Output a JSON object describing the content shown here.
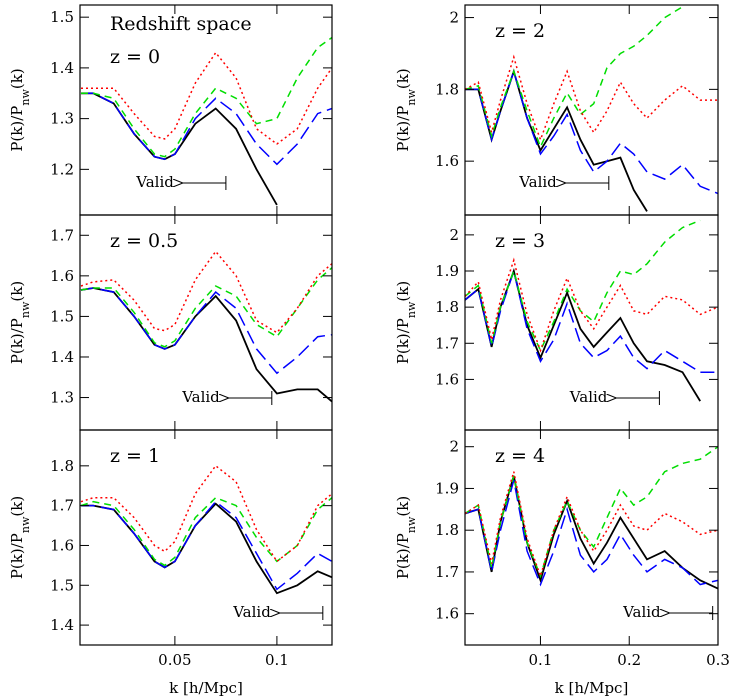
{
  "chart_data": [
    {
      "type": "line",
      "note": "Redshift space",
      "title": "z = 0",
      "ylabel": [
        "P(k)/P",
        "nw",
        "(k)"
      ],
      "annotation": "Valid",
      "valid_k": 0.075,
      "xlim": [
        0.0035,
        0.127
      ],
      "xticks": [
        0.05,
        0.1
      ],
      "ylim": [
        1.11,
        1.524
      ],
      "yticks": [
        1.2,
        1.3,
        1.4,
        1.5
      ],
      "x": [
        0.004,
        0.01,
        0.02,
        0.03,
        0.04,
        0.045,
        0.05,
        0.06,
        0.07,
        0.08,
        0.09,
        0.1,
        0.11,
        0.12,
        0.127
      ],
      "series": [
        {
          "color": "#000000",
          "dash": "solid",
          "values": [
            1.35,
            1.35,
            1.33,
            1.27,
            1.225,
            1.22,
            1.23,
            1.29,
            1.32,
            1.28,
            1.2,
            1.13,
            null,
            null,
            null
          ]
        },
        {
          "color": "#0000ff",
          "dash": "long",
          "values": [
            1.35,
            1.35,
            1.33,
            1.27,
            1.225,
            1.22,
            1.23,
            1.3,
            1.34,
            1.31,
            1.25,
            1.21,
            1.25,
            1.31,
            1.32
          ]
        },
        {
          "color": "#00dd00",
          "dash": "short",
          "values": [
            1.35,
            1.35,
            1.34,
            1.28,
            1.23,
            1.225,
            1.24,
            1.31,
            1.36,
            1.34,
            1.29,
            1.3,
            1.38,
            1.44,
            1.46
          ]
        },
        {
          "color": "#ff0000",
          "dash": "dotted",
          "values": [
            1.36,
            1.36,
            1.36,
            1.31,
            1.265,
            1.26,
            1.28,
            1.37,
            1.43,
            1.38,
            1.28,
            1.25,
            1.28,
            1.36,
            1.4
          ]
        }
      ]
    },
    {
      "type": "line",
      "title": "z = 0.5",
      "ylabel": [
        "P(k)/P",
        "nw",
        "(k)"
      ],
      "annotation": "Valid",
      "valid_k": 0.0975,
      "xlim": [
        0.0035,
        0.127
      ],
      "xticks": [
        0.05,
        0.1
      ],
      "ylim": [
        1.22,
        1.75
      ],
      "yticks": [
        1.3,
        1.4,
        1.5,
        1.6,
        1.7
      ],
      "x": [
        0.004,
        0.01,
        0.02,
        0.03,
        0.04,
        0.045,
        0.05,
        0.06,
        0.07,
        0.08,
        0.09,
        0.1,
        0.11,
        0.12,
        0.127
      ],
      "series": [
        {
          "color": "#000000",
          "dash": "solid",
          "values": [
            1.565,
            1.57,
            1.56,
            1.5,
            1.43,
            1.42,
            1.43,
            1.5,
            1.55,
            1.49,
            1.37,
            1.31,
            1.32,
            1.32,
            1.29
          ]
        },
        {
          "color": "#0000ff",
          "dash": "long",
          "values": [
            1.565,
            1.57,
            1.56,
            1.5,
            1.43,
            1.42,
            1.43,
            1.5,
            1.56,
            1.52,
            1.42,
            1.36,
            1.4,
            1.45,
            1.455
          ]
        },
        {
          "color": "#00dd00",
          "dash": "short",
          "values": [
            1.565,
            1.57,
            1.57,
            1.51,
            1.435,
            1.425,
            1.44,
            1.52,
            1.575,
            1.55,
            1.48,
            1.45,
            1.52,
            1.59,
            1.62
          ]
        },
        {
          "color": "#ff0000",
          "dash": "dotted",
          "values": [
            1.575,
            1.585,
            1.59,
            1.54,
            1.47,
            1.465,
            1.48,
            1.59,
            1.66,
            1.6,
            1.49,
            1.46,
            1.52,
            1.6,
            1.63
          ]
        }
      ]
    },
    {
      "type": "line",
      "title": "z = 1",
      "ylabel": [
        "P(k)/P",
        "nw",
        "(k)"
      ],
      "xlabel": "k [h/Mpc]",
      "annotation": "Valid",
      "valid_k": 0.1225,
      "xlim": [
        0.0035,
        0.127
      ],
      "xticks": [
        0.05,
        0.1
      ],
      "ylim": [
        1.35,
        1.89
      ],
      "yticks": [
        1.4,
        1.5,
        1.6,
        1.7,
        1.8
      ],
      "x": [
        0.004,
        0.01,
        0.02,
        0.03,
        0.04,
        0.045,
        0.05,
        0.06,
        0.07,
        0.08,
        0.09,
        0.1,
        0.11,
        0.12,
        0.127
      ],
      "series": [
        {
          "color": "#000000",
          "dash": "solid",
          "values": [
            1.7,
            1.7,
            1.69,
            1.63,
            1.56,
            1.545,
            1.56,
            1.65,
            1.705,
            1.66,
            1.56,
            1.48,
            1.5,
            1.535,
            1.52
          ]
        },
        {
          "color": "#0000ff",
          "dash": "long",
          "values": [
            1.7,
            1.7,
            1.69,
            1.63,
            1.56,
            1.545,
            1.56,
            1.65,
            1.71,
            1.67,
            1.58,
            1.49,
            1.53,
            1.58,
            1.56
          ]
        },
        {
          "color": "#00dd00",
          "dash": "short",
          "values": [
            1.7,
            1.71,
            1.7,
            1.64,
            1.565,
            1.55,
            1.57,
            1.67,
            1.72,
            1.7,
            1.62,
            1.56,
            1.6,
            1.69,
            1.72
          ]
        },
        {
          "color": "#ff0000",
          "dash": "dotted",
          "values": [
            1.71,
            1.72,
            1.72,
            1.67,
            1.6,
            1.585,
            1.61,
            1.73,
            1.8,
            1.76,
            1.64,
            1.56,
            1.6,
            1.7,
            1.73
          ]
        }
      ]
    },
    {
      "type": "line",
      "title": "z = 2",
      "ylabel": [
        "P(k)/P",
        "nw",
        "(k)"
      ],
      "annotation": "Valid",
      "valid_k": 0.177,
      "xlim": [
        0.015,
        0.3
      ],
      "xticks": [
        0.1,
        0.2,
        0.3
      ],
      "ylim": [
        1.45,
        2.035
      ],
      "yticks": [
        1.6,
        1.8,
        2
      ],
      "x": [
        0.015,
        0.03,
        0.045,
        0.055,
        0.07,
        0.085,
        0.1,
        0.115,
        0.13,
        0.145,
        0.16,
        0.175,
        0.19,
        0.205,
        0.22,
        0.24,
        0.26,
        0.28,
        0.3
      ],
      "series": [
        {
          "color": "#000000",
          "dash": "solid",
          "values": [
            1.8,
            1.8,
            1.66,
            1.74,
            1.85,
            1.72,
            1.63,
            1.69,
            1.75,
            1.66,
            1.59,
            1.6,
            1.61,
            1.52,
            1.46,
            null,
            null,
            null,
            null
          ]
        },
        {
          "color": "#0000ff",
          "dash": "long",
          "values": [
            1.8,
            1.8,
            1.66,
            1.74,
            1.85,
            1.72,
            1.62,
            1.67,
            1.73,
            1.63,
            1.57,
            1.6,
            1.65,
            1.62,
            1.57,
            1.55,
            1.59,
            1.53,
            1.51
          ]
        },
        {
          "color": "#00dd00",
          "dash": "short",
          "values": [
            1.8,
            1.81,
            1.67,
            1.75,
            1.85,
            1.74,
            1.64,
            1.72,
            1.79,
            1.73,
            1.76,
            1.86,
            1.9,
            1.92,
            1.95,
            2.0,
            2.03,
            null,
            null
          ]
        },
        {
          "color": "#ff0000",
          "dash": "dotted",
          "values": [
            1.8,
            1.82,
            1.68,
            1.77,
            1.89,
            1.76,
            1.66,
            1.76,
            1.85,
            1.74,
            1.68,
            1.74,
            1.82,
            1.76,
            1.72,
            1.77,
            1.81,
            1.77,
            1.77
          ]
        }
      ]
    },
    {
      "type": "line",
      "title": "z = 3",
      "ylabel": [
        "P(k)/P",
        "nw",
        "(k)"
      ],
      "annotation": "Valid",
      "valid_k": 0.234,
      "xlim": [
        0.015,
        0.3
      ],
      "xticks": [
        0.1,
        0.2,
        0.3
      ],
      "ylim": [
        1.46,
        2.055
      ],
      "yticks": [
        1.6,
        1.7,
        1.8,
        1.9,
        2
      ],
      "x": [
        0.015,
        0.03,
        0.045,
        0.055,
        0.07,
        0.085,
        0.1,
        0.115,
        0.13,
        0.145,
        0.16,
        0.175,
        0.19,
        0.205,
        0.22,
        0.24,
        0.26,
        0.28,
        0.3
      ],
      "series": [
        {
          "color": "#000000",
          "dash": "solid",
          "values": [
            1.82,
            1.85,
            1.69,
            1.8,
            1.9,
            1.75,
            1.66,
            1.75,
            1.84,
            1.74,
            1.69,
            1.73,
            1.77,
            1.7,
            1.65,
            1.64,
            1.62,
            1.54,
            null
          ]
        },
        {
          "color": "#0000ff",
          "dash": "long",
          "values": [
            1.82,
            1.85,
            1.69,
            1.79,
            1.9,
            1.74,
            1.65,
            1.71,
            1.81,
            1.7,
            1.66,
            1.68,
            1.72,
            1.66,
            1.63,
            1.68,
            1.65,
            1.62,
            1.62
          ]
        },
        {
          "color": "#00dd00",
          "dash": "short",
          "values": [
            1.83,
            1.86,
            1.7,
            1.8,
            1.9,
            1.76,
            1.68,
            1.76,
            1.85,
            1.79,
            1.76,
            1.84,
            1.9,
            1.89,
            1.92,
            1.98,
            2.02,
            2.04,
            null
          ]
        },
        {
          "color": "#ff0000",
          "dash": "dotted",
          "values": [
            1.83,
            1.87,
            1.71,
            1.82,
            1.93,
            1.78,
            1.68,
            1.79,
            1.88,
            1.79,
            1.74,
            1.8,
            1.86,
            1.79,
            1.78,
            1.83,
            1.82,
            1.78,
            1.8
          ]
        }
      ]
    },
    {
      "type": "line",
      "title": "z = 4",
      "ylabel": [
        "P(k)/P",
        "nw",
        "(k)"
      ],
      "xlabel": "k [h/Mpc]",
      "annotation": "Valid",
      "valid_k": 0.294,
      "xlim": [
        0.015,
        0.3
      ],
      "xticks": [
        0.1,
        0.2,
        0.3
      ],
      "ylim": [
        1.525,
        2.04
      ],
      "yticks": [
        1.6,
        1.7,
        1.8,
        1.9,
        2
      ],
      "x": [
        0.015,
        0.03,
        0.045,
        0.055,
        0.07,
        0.085,
        0.1,
        0.115,
        0.13,
        0.145,
        0.16,
        0.175,
        0.19,
        0.205,
        0.22,
        0.24,
        0.26,
        0.28,
        0.3
      ],
      "series": [
        {
          "color": "#000000",
          "dash": "solid",
          "values": [
            1.84,
            1.85,
            1.7,
            1.82,
            1.93,
            1.77,
            1.68,
            1.79,
            1.87,
            1.78,
            1.72,
            1.77,
            1.83,
            1.78,
            1.73,
            1.75,
            1.71,
            1.68,
            1.66
          ]
        },
        {
          "color": "#0000ff",
          "dash": "long",
          "values": [
            1.84,
            1.85,
            1.7,
            1.8,
            1.92,
            1.75,
            1.67,
            1.75,
            1.85,
            1.74,
            1.7,
            1.73,
            1.79,
            1.74,
            1.7,
            1.73,
            1.71,
            1.67,
            1.68
          ]
        },
        {
          "color": "#00dd00",
          "dash": "short",
          "values": [
            1.84,
            1.86,
            1.71,
            1.82,
            1.93,
            1.77,
            1.69,
            1.8,
            1.87,
            1.8,
            1.76,
            1.83,
            1.9,
            1.86,
            1.88,
            1.94,
            1.96,
            1.97,
            2.0
          ]
        },
        {
          "color": "#ff0000",
          "dash": "dotted",
          "values": [
            1.84,
            1.86,
            1.72,
            1.83,
            1.94,
            1.78,
            1.69,
            1.8,
            1.88,
            1.8,
            1.75,
            1.8,
            1.86,
            1.81,
            1.8,
            1.84,
            1.82,
            1.79,
            1.8
          ]
        }
      ]
    }
  ]
}
